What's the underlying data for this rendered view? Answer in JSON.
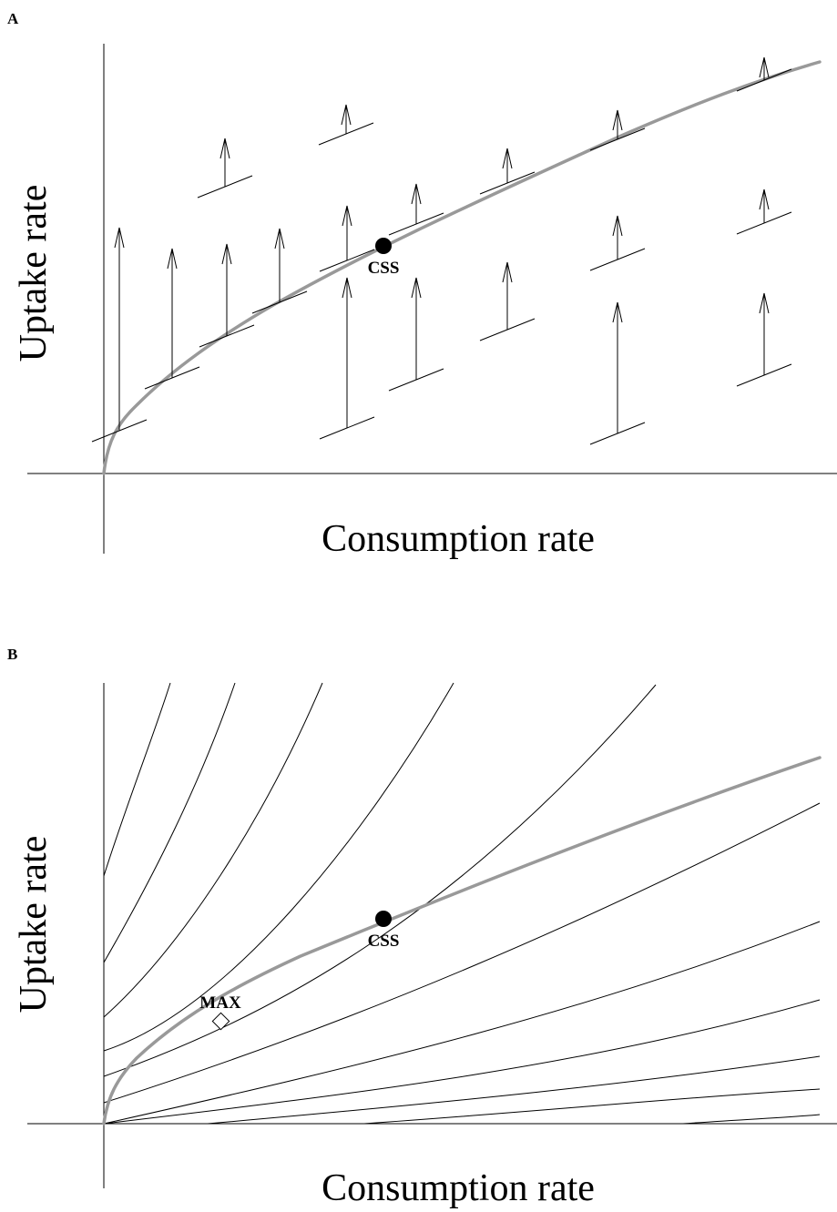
{
  "panels": [
    {
      "label": "A",
      "xlabel": "Consumption rate",
      "ylabel": "Uptake rate",
      "point_label": "CSS"
    },
    {
      "label": "B",
      "xlabel": "Consumption rate",
      "ylabel": "Uptake rate",
      "point_label": "CSS",
      "max_label": "MAX"
    }
  ],
  "colors": {
    "curve": "#999999",
    "lines": "#000000",
    "background": "#ffffff"
  },
  "icons": {
    "css_marker": "filled-circle",
    "max_marker": "open-diamond",
    "vector": "arrow-up"
  }
}
